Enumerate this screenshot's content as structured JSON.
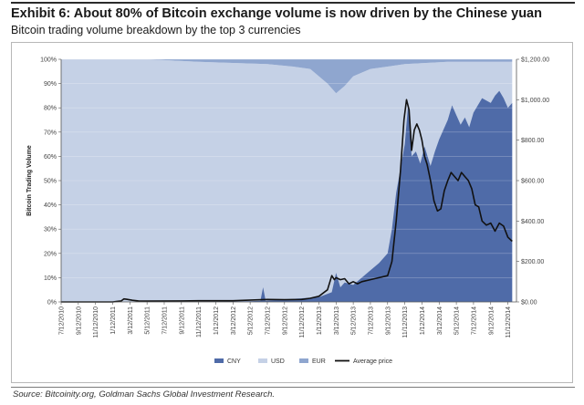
{
  "header": {
    "title": "Exhibit 6: About 80% of Bitcoin exchange volume is now driven by the Chinese yuan",
    "subtitle": "Bitcoin trading volume breakdown by the top 3 currencies"
  },
  "footer": {
    "source": "Source: Bitcoinity.org, Goldman Sachs Global Investment Research."
  },
  "colors": {
    "cny": "#4f6ba8",
    "usd": "#c5d1e6",
    "eur": "#8fa6cf",
    "price": "#111111"
  },
  "chart_data": {
    "type": "area",
    "ylabel": "Bitcoin Trading Volume",
    "y_left_range": [
      0,
      100
    ],
    "y_right_range": [
      0,
      1200
    ],
    "y_left_ticks": [
      "0%",
      "10%",
      "20%",
      "30%",
      "40%",
      "50%",
      "60%",
      "70%",
      "80%",
      "90%",
      "100%"
    ],
    "y_right_ticks": [
      "$0.00",
      "$200.00",
      "$400.00",
      "$600.00",
      "$800.00",
      "$1,000.00",
      "$1,200.00"
    ],
    "x_range": [
      0,
      53
    ],
    "x_ticks": [
      "7/12/2010",
      "9/12/2010",
      "11/12/2010",
      "1/12/2011",
      "3/12/2011",
      "5/12/2011",
      "7/12/2011",
      "9/12/2011",
      "11/12/2011",
      "1/12/2012",
      "3/12/2012",
      "5/12/2012",
      "7/12/2012",
      "9/12/2012",
      "11/12/2012",
      "1/12/2013",
      "3/12/2013",
      "5/12/2013",
      "7/12/2013",
      "9/12/2013",
      "11/12/2013",
      "1/12/2014",
      "3/12/2014",
      "5/12/2014",
      "7/12/2014",
      "9/12/2014",
      "11/12/2014"
    ],
    "legend": [
      "CNY",
      "USD",
      "EUR",
      "Average price"
    ],
    "legend_position": "bottom",
    "series": [
      {
        "name": "CNY",
        "unit": "%",
        "points": [
          [
            0,
            0
          ],
          [
            16,
            0
          ],
          [
            22,
            0.3
          ],
          [
            23.2,
            0.5
          ],
          [
            23.5,
            6
          ],
          [
            23.8,
            0.5
          ],
          [
            26,
            1
          ],
          [
            30,
            2
          ],
          [
            31.5,
            4
          ],
          [
            32,
            12
          ],
          [
            32.5,
            6
          ],
          [
            33,
            8
          ],
          [
            34,
            7
          ],
          [
            35,
            10
          ],
          [
            36,
            13
          ],
          [
            37,
            16
          ],
          [
            38,
            20
          ],
          [
            38.5,
            30
          ],
          [
            39,
            45
          ],
          [
            39.5,
            55
          ],
          [
            40,
            65
          ],
          [
            40.4,
            82
          ],
          [
            40.8,
            60
          ],
          [
            41.3,
            62
          ],
          [
            41.8,
            57
          ],
          [
            42.3,
            64
          ],
          [
            43,
            56
          ],
          [
            43.5,
            62
          ],
          [
            44,
            67
          ],
          [
            45,
            75
          ],
          [
            45.5,
            81
          ],
          [
            46,
            77
          ],
          [
            46.5,
            73
          ],
          [
            47,
            76
          ],
          [
            47.5,
            72
          ],
          [
            48,
            78
          ],
          [
            49,
            84
          ],
          [
            50,
            82
          ],
          [
            50.5,
            85
          ],
          [
            51,
            87
          ],
          [
            51.5,
            84
          ],
          [
            52,
            80
          ],
          [
            52.5,
            82
          ]
        ]
      },
      {
        "name": "USD",
        "unit": "%",
        "points": [
          [
            0,
            100
          ],
          [
            10,
            100
          ],
          [
            16,
            99
          ],
          [
            20,
            98.5
          ],
          [
            24,
            98
          ],
          [
            27,
            97
          ],
          [
            29,
            96
          ],
          [
            31,
            90
          ],
          [
            32,
            86
          ],
          [
            33,
            89
          ],
          [
            34,
            93
          ],
          [
            36,
            96
          ],
          [
            38,
            97
          ],
          [
            40,
            98
          ],
          [
            45,
            99
          ],
          [
            52.5,
            99
          ]
        ]
      },
      {
        "name": "EUR",
        "unit": "%",
        "points": [
          [
            0,
            0
          ],
          [
            10,
            0
          ],
          [
            16,
            1
          ],
          [
            20,
            1.5
          ],
          [
            24,
            2
          ],
          [
            27,
            3
          ],
          [
            29,
            4
          ],
          [
            31,
            10
          ],
          [
            32,
            14
          ],
          [
            33,
            11
          ],
          [
            34,
            7
          ],
          [
            36,
            4
          ],
          [
            38,
            3
          ],
          [
            40,
            2
          ],
          [
            45,
            1
          ],
          [
            52.5,
            1
          ]
        ]
      },
      {
        "name": "Average price",
        "unit": "$",
        "points": [
          [
            0,
            0
          ],
          [
            6,
            0
          ],
          [
            7,
            5
          ],
          [
            7.3,
            15
          ],
          [
            7.6,
            13
          ],
          [
            8.3,
            8
          ],
          [
            9,
            5
          ],
          [
            10,
            4
          ],
          [
            14,
            5
          ],
          [
            16,
            6
          ],
          [
            20,
            6
          ],
          [
            24,
            12
          ],
          [
            26,
            11
          ],
          [
            28,
            12
          ],
          [
            29,
            18
          ],
          [
            30,
            28
          ],
          [
            31,
            60
          ],
          [
            31.5,
            130
          ],
          [
            31.8,
            110
          ],
          [
            32,
            120
          ],
          [
            32.5,
            110
          ],
          [
            33,
            115
          ],
          [
            33.5,
            90
          ],
          [
            34,
            100
          ],
          [
            34.5,
            90
          ],
          [
            35,
            100
          ],
          [
            36,
            110
          ],
          [
            37,
            120
          ],
          [
            38,
            130
          ],
          [
            38.5,
            200
          ],
          [
            39,
            400
          ],
          [
            39.5,
            650
          ],
          [
            39.9,
            900
          ],
          [
            40.2,
            1000
          ],
          [
            40.5,
            950
          ],
          [
            40.8,
            750
          ],
          [
            41.1,
            850
          ],
          [
            41.4,
            880
          ],
          [
            41.7,
            850
          ],
          [
            42,
            800
          ],
          [
            42.3,
            720
          ],
          [
            42.6,
            680
          ],
          [
            43,
            600
          ],
          [
            43.4,
            500
          ],
          [
            43.8,
            450
          ],
          [
            44.2,
            460
          ],
          [
            44.6,
            550
          ],
          [
            45,
            600
          ],
          [
            45.4,
            640
          ],
          [
            45.8,
            620
          ],
          [
            46.2,
            600
          ],
          [
            46.6,
            640
          ],
          [
            47,
            620
          ],
          [
            47.4,
            600
          ],
          [
            47.8,
            560
          ],
          [
            48.2,
            480
          ],
          [
            48.6,
            470
          ],
          [
            49,
            400
          ],
          [
            49.5,
            380
          ],
          [
            50,
            390
          ],
          [
            50.5,
            350
          ],
          [
            51,
            390
          ],
          [
            51.5,
            375
          ],
          [
            52,
            320
          ],
          [
            52.5,
            300
          ]
        ]
      }
    ]
  }
}
